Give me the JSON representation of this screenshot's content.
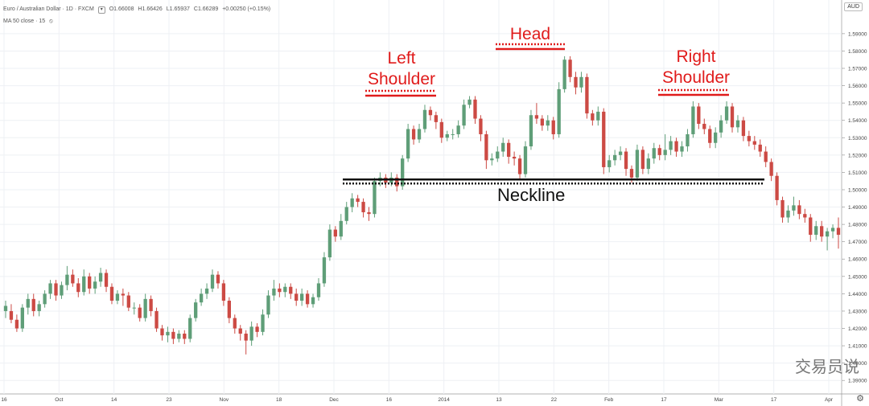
{
  "header": {
    "symbol": "Euro / Australian Dollar · 1D · FXCM",
    "open": "O1.66008",
    "high": "H1.66426",
    "low": "L1.65937",
    "close": "C1.66289",
    "change": "+0.00250 (+0.15%)",
    "indicator": "MA 50 close · 15",
    "currency": "AUD"
  },
  "annotations": {
    "left_shoulder": "Left\nShoulder",
    "head": "Head",
    "right_shoulder": "Right\nShoulder",
    "neckline": "Neckline"
  },
  "watermark": "交易员说",
  "colors": {
    "up": "#5f9e78",
    "down": "#cc4a44",
    "annotation": "#e01b1b"
  },
  "chart_data": {
    "type": "candlestick",
    "y_ticks": [
      "1.59000",
      "1.58000",
      "1.57000",
      "1.56000",
      "1.55000",
      "1.54000",
      "1.53000",
      "1.52000",
      "1.51000",
      "1.50000",
      "1.49000",
      "1.48000",
      "1.47000",
      "1.46000",
      "1.45000",
      "1.44000",
      "1.43000",
      "1.42000",
      "1.41000",
      "1.40000",
      "1.39000"
    ],
    "ylim": [
      1.385,
      1.602
    ],
    "x_labels": [
      "16",
      "Oct",
      "14",
      "23",
      "Nov",
      "18",
      "Dec",
      "16",
      "2014",
      "13",
      "22",
      "Feb",
      "17",
      "Mar",
      "17",
      "Apr"
    ],
    "neckline": 1.505,
    "candles": [
      [
        1.43,
        1.433,
        1.426,
        1.436
      ],
      [
        1.43,
        1.425,
        1.423,
        1.434
      ],
      [
        1.425,
        1.42,
        1.418,
        1.428
      ],
      [
        1.42,
        1.432,
        1.418,
        1.434
      ],
      [
        1.432,
        1.437,
        1.428,
        1.44
      ],
      [
        1.437,
        1.43,
        1.427,
        1.44
      ],
      [
        1.43,
        1.434,
        1.427,
        1.436
      ],
      [
        1.434,
        1.44,
        1.432,
        1.442
      ],
      [
        1.44,
        1.446,
        1.437,
        1.448
      ],
      [
        1.446,
        1.439,
        1.436,
        1.448
      ],
      [
        1.439,
        1.445,
        1.437,
        1.447
      ],
      [
        1.445,
        1.451,
        1.442,
        1.456
      ],
      [
        1.451,
        1.446,
        1.444,
        1.454
      ],
      [
        1.446,
        1.441,
        1.438,
        1.449
      ],
      [
        1.441,
        1.45,
        1.439,
        1.454
      ],
      [
        1.45,
        1.443,
        1.44,
        1.452
      ],
      [
        1.443,
        1.447,
        1.44,
        1.45
      ],
      [
        1.447,
        1.452,
        1.444,
        1.455
      ],
      [
        1.452,
        1.444,
        1.441,
        1.454
      ],
      [
        1.444,
        1.436,
        1.434,
        1.446
      ],
      [
        1.436,
        1.44,
        1.434,
        1.442
      ],
      [
        1.44,
        1.439,
        1.433,
        1.443
      ],
      [
        1.439,
        1.432,
        1.43,
        1.441
      ],
      [
        1.432,
        1.432,
        1.428,
        1.435
      ],
      [
        1.432,
        1.426,
        1.424,
        1.434
      ],
      [
        1.426,
        1.437,
        1.424,
        1.44
      ],
      [
        1.437,
        1.43,
        1.427,
        1.439
      ],
      [
        1.43,
        1.42,
        1.418,
        1.432
      ],
      [
        1.42,
        1.416,
        1.413,
        1.422
      ],
      [
        1.416,
        1.418,
        1.412,
        1.421
      ],
      [
        1.418,
        1.414,
        1.411,
        1.42
      ],
      [
        1.414,
        1.417,
        1.412,
        1.419
      ],
      [
        1.417,
        1.414,
        1.411,
        1.419
      ],
      [
        1.414,
        1.426,
        1.412,
        1.428
      ],
      [
        1.426,
        1.435,
        1.424,
        1.437
      ],
      [
        1.435,
        1.44,
        1.433,
        1.443
      ],
      [
        1.44,
        1.443,
        1.437,
        1.446
      ],
      [
        1.443,
        1.451,
        1.441,
        1.454
      ],
      [
        1.451,
        1.446,
        1.443,
        1.453
      ],
      [
        1.446,
        1.436,
        1.433,
        1.448
      ],
      [
        1.436,
        1.426,
        1.423,
        1.438
      ],
      [
        1.426,
        1.42,
        1.417,
        1.428
      ],
      [
        1.42,
        1.417,
        1.413,
        1.422
      ],
      [
        1.417,
        1.413,
        1.405,
        1.419
      ],
      [
        1.413,
        1.421,
        1.41,
        1.424
      ],
      [
        1.421,
        1.418,
        1.415,
        1.423
      ],
      [
        1.418,
        1.428,
        1.416,
        1.431
      ],
      [
        1.428,
        1.439,
        1.426,
        1.442
      ],
      [
        1.439,
        1.443,
        1.436,
        1.448
      ],
      [
        1.443,
        1.441,
        1.438,
        1.446
      ],
      [
        1.441,
        1.444,
        1.438,
        1.446
      ],
      [
        1.444,
        1.44,
        1.437,
        1.446
      ],
      [
        1.44,
        1.436,
        1.433,
        1.443
      ],
      [
        1.436,
        1.44,
        1.433,
        1.443
      ],
      [
        1.44,
        1.434,
        1.432,
        1.442
      ],
      [
        1.434,
        1.438,
        1.432,
        1.44
      ],
      [
        1.438,
        1.446,
        1.436,
        1.449
      ],
      [
        1.446,
        1.461,
        1.444,
        1.464
      ],
      [
        1.461,
        1.477,
        1.459,
        1.48
      ],
      [
        1.477,
        1.473,
        1.47,
        1.479
      ],
      [
        1.473,
        1.482,
        1.471,
        1.486
      ],
      [
        1.482,
        1.49,
        1.48,
        1.493
      ],
      [
        1.49,
        1.495,
        1.487,
        1.498
      ],
      [
        1.495,
        1.493,
        1.49,
        1.497
      ],
      [
        1.493,
        1.487,
        1.484,
        1.495
      ],
      [
        1.487,
        1.486,
        1.482,
        1.49
      ],
      [
        1.486,
        1.505,
        1.484,
        1.507
      ],
      [
        1.505,
        1.507,
        1.502,
        1.51
      ],
      [
        1.507,
        1.504,
        1.501,
        1.509
      ],
      [
        1.504,
        1.507,
        1.502,
        1.51
      ],
      [
        1.507,
        1.502,
        1.499,
        1.509
      ],
      [
        1.502,
        1.518,
        1.5,
        1.52
      ],
      [
        1.518,
        1.535,
        1.516,
        1.538
      ],
      [
        1.535,
        1.529,
        1.526,
        1.537
      ],
      [
        1.529,
        1.535,
        1.527,
        1.538
      ],
      [
        1.535,
        1.546,
        1.533,
        1.549
      ],
      [
        1.546,
        1.543,
        1.54,
        1.548
      ],
      [
        1.543,
        1.539,
        1.535,
        1.545
      ],
      [
        1.539,
        1.53,
        1.527,
        1.541
      ],
      [
        1.53,
        1.532,
        1.528,
        1.534
      ],
      [
        1.532,
        1.532,
        1.529,
        1.535
      ],
      [
        1.532,
        1.537,
        1.53,
        1.54
      ],
      [
        1.537,
        1.549,
        1.535,
        1.552
      ],
      [
        1.549,
        1.552,
        1.547,
        1.554
      ],
      [
        1.552,
        1.541,
        1.538,
        1.554
      ],
      [
        1.541,
        1.532,
        1.528,
        1.543
      ],
      [
        1.532,
        1.517,
        1.512,
        1.534
      ],
      [
        1.517,
        1.518,
        1.514,
        1.521
      ],
      [
        1.518,
        1.522,
        1.516,
        1.525
      ],
      [
        1.522,
        1.527,
        1.519,
        1.53
      ],
      [
        1.527,
        1.519,
        1.515,
        1.529
      ],
      [
        1.519,
        1.518,
        1.514,
        1.522
      ],
      [
        1.518,
        1.509,
        1.506,
        1.52
      ],
      [
        1.509,
        1.525,
        1.507,
        1.528
      ],
      [
        1.525,
        1.543,
        1.523,
        1.546
      ],
      [
        1.543,
        1.541,
        1.538,
        1.55
      ],
      [
        1.541,
        1.537,
        1.534,
        1.543
      ],
      [
        1.537,
        1.54,
        1.534,
        1.543
      ],
      [
        1.54,
        1.532,
        1.529,
        1.542
      ],
      [
        1.532,
        1.558,
        1.53,
        1.562
      ],
      [
        1.558,
        1.575,
        1.556,
        1.577
      ],
      [
        1.575,
        1.565,
        1.562,
        1.577
      ],
      [
        1.565,
        1.559,
        1.555,
        1.568
      ],
      [
        1.559,
        1.565,
        1.556,
        1.568
      ],
      [
        1.565,
        1.544,
        1.541,
        1.567
      ],
      [
        1.544,
        1.54,
        1.537,
        1.546
      ],
      [
        1.54,
        1.545,
        1.537,
        1.548
      ],
      [
        1.545,
        1.513,
        1.509,
        1.547
      ],
      [
        1.513,
        1.517,
        1.51,
        1.52
      ],
      [
        1.517,
        1.52,
        1.514,
        1.523
      ],
      [
        1.52,
        1.522,
        1.517,
        1.525
      ],
      [
        1.522,
        1.512,
        1.508,
        1.524
      ],
      [
        1.512,
        1.507,
        1.504,
        1.514
      ],
      [
        1.507,
        1.523,
        1.505,
        1.526
      ],
      [
        1.523,
        1.512,
        1.509,
        1.525
      ],
      [
        1.512,
        1.518,
        1.509,
        1.521
      ],
      [
        1.518,
        1.524,
        1.515,
        1.527
      ],
      [
        1.524,
        1.52,
        1.517,
        1.526
      ],
      [
        1.52,
        1.523,
        1.517,
        1.532
      ],
      [
        1.523,
        1.528,
        1.52,
        1.531
      ],
      [
        1.528,
        1.522,
        1.519,
        1.53
      ],
      [
        1.522,
        1.525,
        1.519,
        1.528
      ],
      [
        1.525,
        1.532,
        1.522,
        1.535
      ],
      [
        1.532,
        1.548,
        1.53,
        1.551
      ],
      [
        1.548,
        1.538,
        1.535,
        1.55
      ],
      [
        1.538,
        1.535,
        1.532,
        1.541
      ],
      [
        1.535,
        1.527,
        1.524,
        1.537
      ],
      [
        1.527,
        1.533,
        1.524,
        1.536
      ],
      [
        1.533,
        1.54,
        1.53,
        1.543
      ],
      [
        1.54,
        1.548,
        1.538,
        1.551
      ],
      [
        1.548,
        1.536,
        1.533,
        1.55
      ],
      [
        1.536,
        1.54,
        1.533,
        1.543
      ],
      [
        1.54,
        1.531,
        1.528,
        1.542
      ],
      [
        1.531,
        1.528,
        1.525,
        1.534
      ],
      [
        1.528,
        1.526,
        1.523,
        1.531
      ],
      [
        1.526,
        1.522,
        1.519,
        1.529
      ],
      [
        1.522,
        1.516,
        1.513,
        1.525
      ],
      [
        1.516,
        1.508,
        1.505,
        1.518
      ],
      [
        1.508,
        1.494,
        1.491,
        1.51
      ],
      [
        1.494,
        1.484,
        1.481,
        1.496
      ],
      [
        1.484,
        1.488,
        1.481,
        1.491
      ],
      [
        1.488,
        1.491,
        1.485,
        1.496
      ],
      [
        1.491,
        1.486,
        1.483,
        1.494
      ],
      [
        1.486,
        1.484,
        1.481,
        1.489
      ],
      [
        1.484,
        1.474,
        1.47,
        1.486
      ],
      [
        1.474,
        1.479,
        1.471,
        1.482
      ],
      [
        1.479,
        1.473,
        1.47,
        1.482
      ],
      [
        1.473,
        1.476,
        1.465,
        1.478
      ],
      [
        1.476,
        1.478,
        1.472,
        1.48
      ],
      [
        1.478,
        1.474,
        1.466,
        1.484
      ]
    ]
  }
}
